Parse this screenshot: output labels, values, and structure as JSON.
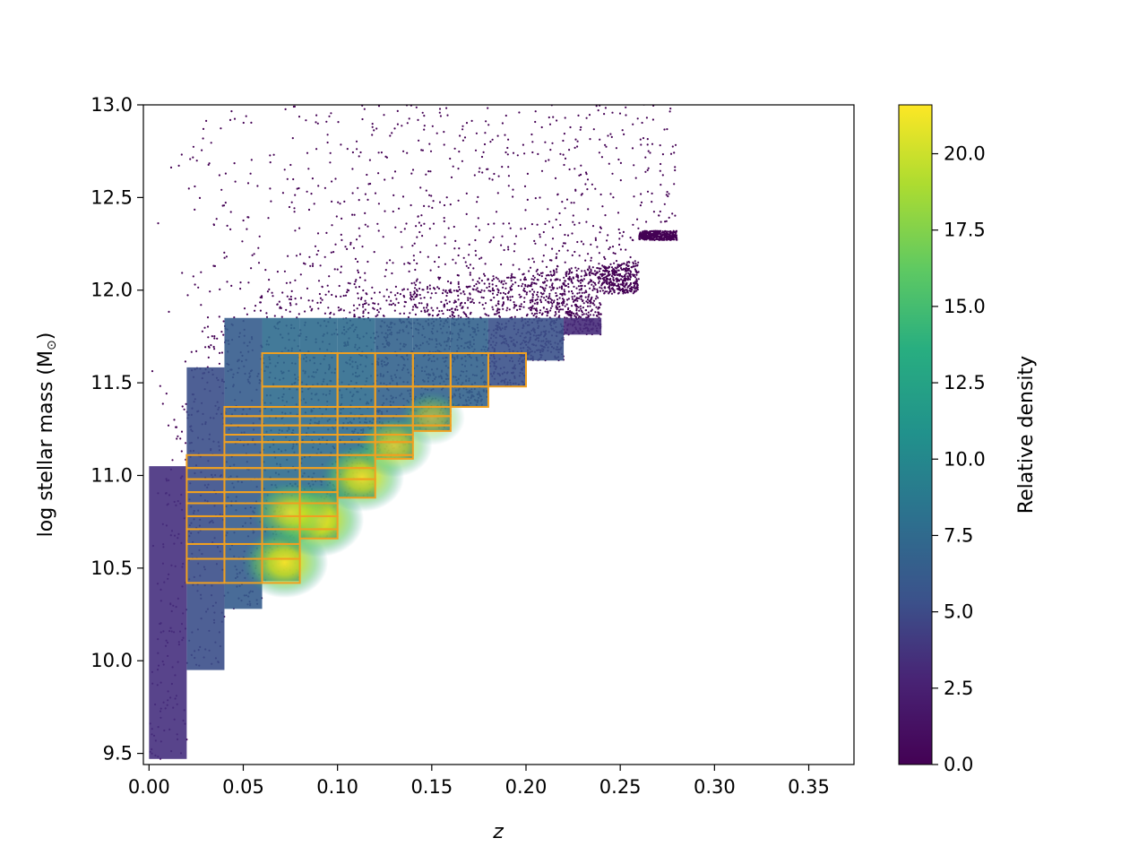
{
  "chart_data": {
    "type": "scatter",
    "title": "",
    "xlabel": "z",
    "ylabel": "log stellar mass (M",
    "ylabel_symbol": "⊙",
    "ylabel_close": ")",
    "xlim": [
      -0.003,
      0.374
    ],
    "ylim": [
      9.44,
      13.0
    ],
    "xticks": [
      0.0,
      0.05,
      0.1,
      0.15,
      0.2,
      0.25,
      0.3,
      0.35
    ],
    "xtick_labels": [
      "0.00",
      "0.05",
      "0.10",
      "0.15",
      "0.20",
      "0.25",
      "0.30",
      "0.35"
    ],
    "yticks": [
      9.5,
      10.0,
      10.5,
      11.0,
      11.5,
      12.0,
      12.5,
      13.0
    ],
    "ytick_labels": [
      "9.5",
      "10.0",
      "10.5",
      "11.0",
      "11.5",
      "12.0",
      "12.5",
      "13.0"
    ],
    "colormap": "viridis",
    "grid": false,
    "colorbar": {
      "label": "Relative density",
      "range": [
        0.0,
        21.6
      ],
      "ticks": [
        0.0,
        2.5,
        5.0,
        7.5,
        10.0,
        12.5,
        15.0,
        17.5,
        20.0
      ],
      "tick_labels": [
        "0.0",
        "2.5",
        "5.0",
        "7.5",
        "10.0",
        "12.5",
        "15.0",
        "17.5",
        "20.0"
      ]
    },
    "density_steps": [
      {
        "z0": 0.0,
        "z1": 0.02,
        "m_min": 9.47
      },
      {
        "z0": 0.02,
        "z1": 0.04,
        "m_min": 9.95
      },
      {
        "z0": 0.04,
        "z1": 0.06,
        "m_min": 10.28
      },
      {
        "z0": 0.06,
        "z1": 0.08,
        "m_min": 10.43
      },
      {
        "z0": 0.08,
        "z1": 0.1,
        "m_min": 10.66
      },
      {
        "z0": 0.1,
        "z1": 0.12,
        "m_min": 10.88
      },
      {
        "z0": 0.12,
        "z1": 0.14,
        "m_min": 11.09
      },
      {
        "z0": 0.14,
        "z1": 0.16,
        "m_min": 11.24
      },
      {
        "z0": 0.16,
        "z1": 0.18,
        "m_min": 11.37
      },
      {
        "z0": 0.18,
        "z1": 0.2,
        "m_min": 11.48
      },
      {
        "z0": 0.2,
        "z1": 0.22,
        "m_min": 11.62
      },
      {
        "z0": 0.22,
        "z1": 0.24,
        "m_min": 11.76
      },
      {
        "z0": 0.24,
        "z1": 0.26,
        "m_min": 11.98
      },
      {
        "z0": 0.26,
        "z1": 0.28,
        "m_min": 12.27
      }
    ],
    "density_peaks": [
      {
        "z": 0.072,
        "m": 10.53,
        "value": 20.0
      },
      {
        "z": 0.09,
        "m": 10.76,
        "value": 21.5
      },
      {
        "z": 0.113,
        "m": 10.99,
        "value": 19.0
      },
      {
        "z": 0.13,
        "m": 11.16,
        "value": 16.0
      },
      {
        "z": 0.075,
        "m": 10.8,
        "value": 16.5
      },
      {
        "z": 0.15,
        "m": 11.31,
        "value": 12.0
      }
    ],
    "bin_grid_color": "#f0a020",
    "bin_columns": [
      {
        "z0": 0.02,
        "z1": 0.04,
        "edges": [
          10.42,
          10.55,
          10.63,
          10.71,
          10.78,
          10.85,
          10.91,
          10.98,
          11.04,
          11.11
        ]
      },
      {
        "z0": 0.04,
        "z1": 0.06,
        "edges": [
          10.42,
          10.55,
          10.63,
          10.71,
          10.78,
          10.85,
          10.91,
          10.98,
          11.04,
          11.11,
          11.18,
          11.22,
          11.27,
          11.32,
          11.37
        ]
      },
      {
        "z0": 0.06,
        "z1": 0.08,
        "edges": [
          10.42,
          10.55,
          10.63,
          10.71,
          10.78,
          10.85,
          10.91,
          10.98,
          11.04,
          11.11,
          11.18,
          11.22,
          11.27,
          11.32,
          11.37,
          11.48,
          11.66
        ]
      },
      {
        "z0": 0.08,
        "z1": 0.1,
        "edges": [
          10.66,
          10.71,
          10.78,
          10.85,
          10.91,
          10.98,
          11.04,
          11.11,
          11.18,
          11.22,
          11.27,
          11.32,
          11.37,
          11.48,
          11.66
        ]
      },
      {
        "z0": 0.1,
        "z1": 0.12,
        "edges": [
          10.88,
          10.98,
          11.04,
          11.11,
          11.18,
          11.22,
          11.27,
          11.32,
          11.37,
          11.48,
          11.66
        ]
      },
      {
        "z0": 0.12,
        "z1": 0.14,
        "edges": [
          11.09,
          11.11,
          11.18,
          11.22,
          11.27,
          11.32,
          11.37,
          11.48,
          11.66
        ]
      },
      {
        "z0": 0.14,
        "z1": 0.16,
        "edges": [
          11.24,
          11.27,
          11.32,
          11.37,
          11.48,
          11.66
        ]
      },
      {
        "z0": 0.16,
        "z1": 0.18,
        "edges": [
          11.37,
          11.48,
          11.66
        ]
      },
      {
        "z0": 0.18,
        "z1": 0.2,
        "edges": [
          11.48,
          11.66
        ]
      }
    ]
  }
}
